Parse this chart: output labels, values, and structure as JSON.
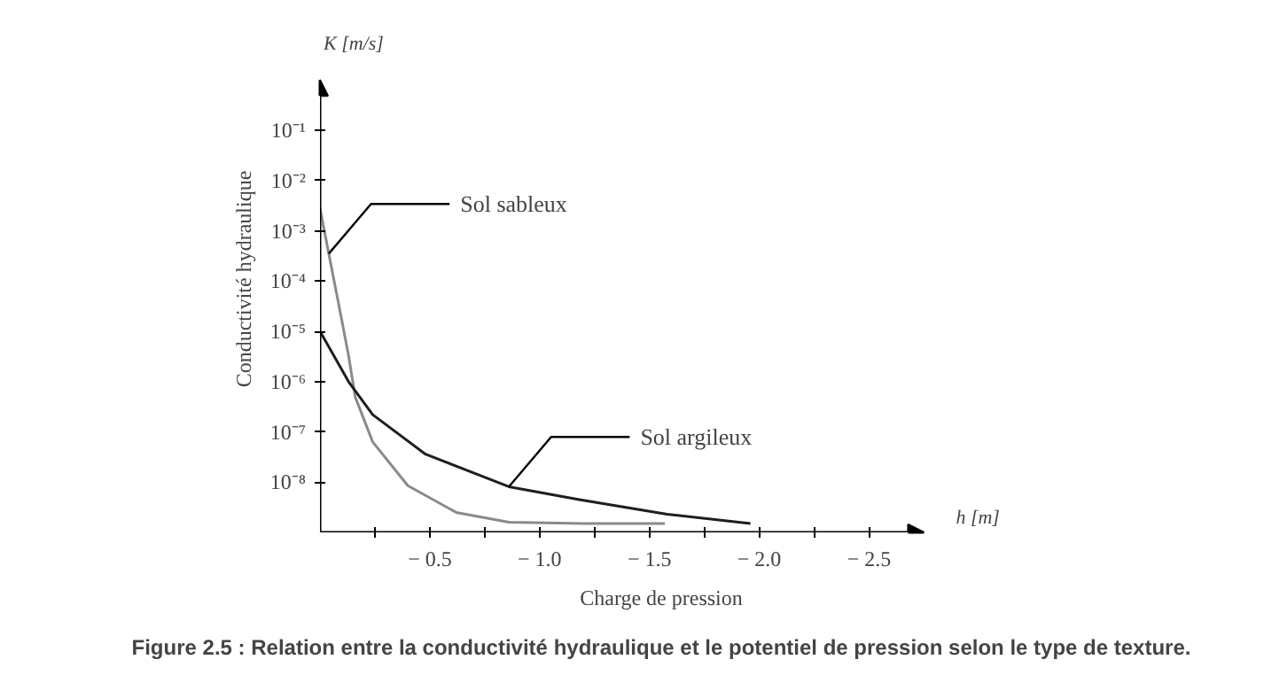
{
  "chart_data": {
    "type": "line",
    "ylabel": "Conductivité hydraulique",
    "xlabel": "Charge de pression",
    "annotations": [
      "K [m/s]",
      "h [m]",
      "Figure 2.5 : Relation entre la conductivité hydraulique et le potentiel de pression selon le type de texture."
    ],
    "log": true,
    "xlim": [
      0,
      -2.75
    ],
    "xticks": [
      {
        "value": -0.25,
        "label": null
      },
      {
        "value": -0.5,
        "label": "− 0.5"
      },
      {
        "value": -0.75,
        "label": null
      },
      {
        "value": -1.0,
        "label": "− 1.0"
      },
      {
        "value": -1.25,
        "label": null
      },
      {
        "value": -1.5,
        "label": "− 1.5"
      },
      {
        "value": -1.75,
        "label": null
      },
      {
        "value": -2.0,
        "label": "− 2.0"
      },
      {
        "value": -2.25,
        "label": null
      },
      {
        "value": -2.5,
        "label": "− 2.5"
      }
    ],
    "ylim": [
      1e-09,
      1
    ],
    "yticks": [
      {
        "value": 0.1,
        "label": "10⁻¹"
      },
      {
        "value": 0.01,
        "label": "10⁻²"
      },
      {
        "value": 0.001,
        "label": "10⁻³"
      },
      {
        "value": 0.0001,
        "label": "10⁻⁴"
      },
      {
        "value": 1e-05,
        "label": "10⁻⁵"
      },
      {
        "value": 1e-06,
        "label": "10⁻⁶"
      },
      {
        "value": 1e-07,
        "label": "10⁻⁷"
      },
      {
        "value": 1e-08,
        "label": "10⁻⁸"
      }
    ],
    "grid": false,
    "series": [
      {
        "name": "Sol sableux",
        "color": "#8a8a8a",
        "x": [
          0,
          -0.04,
          -0.08,
          -0.1,
          -0.13,
          -0.16,
          -0.24,
          -0.4,
          -0.62,
          -0.86,
          -1.2,
          -1.57
        ],
        "values": [
          0.0028,
          0.00035,
          4.5e-05,
          1.6e-05,
          3.3e-06,
          5e-07,
          6.3e-08,
          8.5e-09,
          2.5e-09,
          1.6e-09,
          1.5e-09,
          1.5e-09
        ]
      },
      {
        "name": "Sol argileux",
        "color": "#1e1e1e",
        "x": [
          0,
          -0.13,
          -0.24,
          -0.48,
          -0.86,
          -1.18,
          -1.58,
          -1.96
        ],
        "values": [
          1e-05,
          1e-06,
          2.2e-07,
          3.6e-08,
          8.1e-09,
          4.5e-09,
          2.3e-09,
          1.5e-09
        ]
      }
    ]
  }
}
